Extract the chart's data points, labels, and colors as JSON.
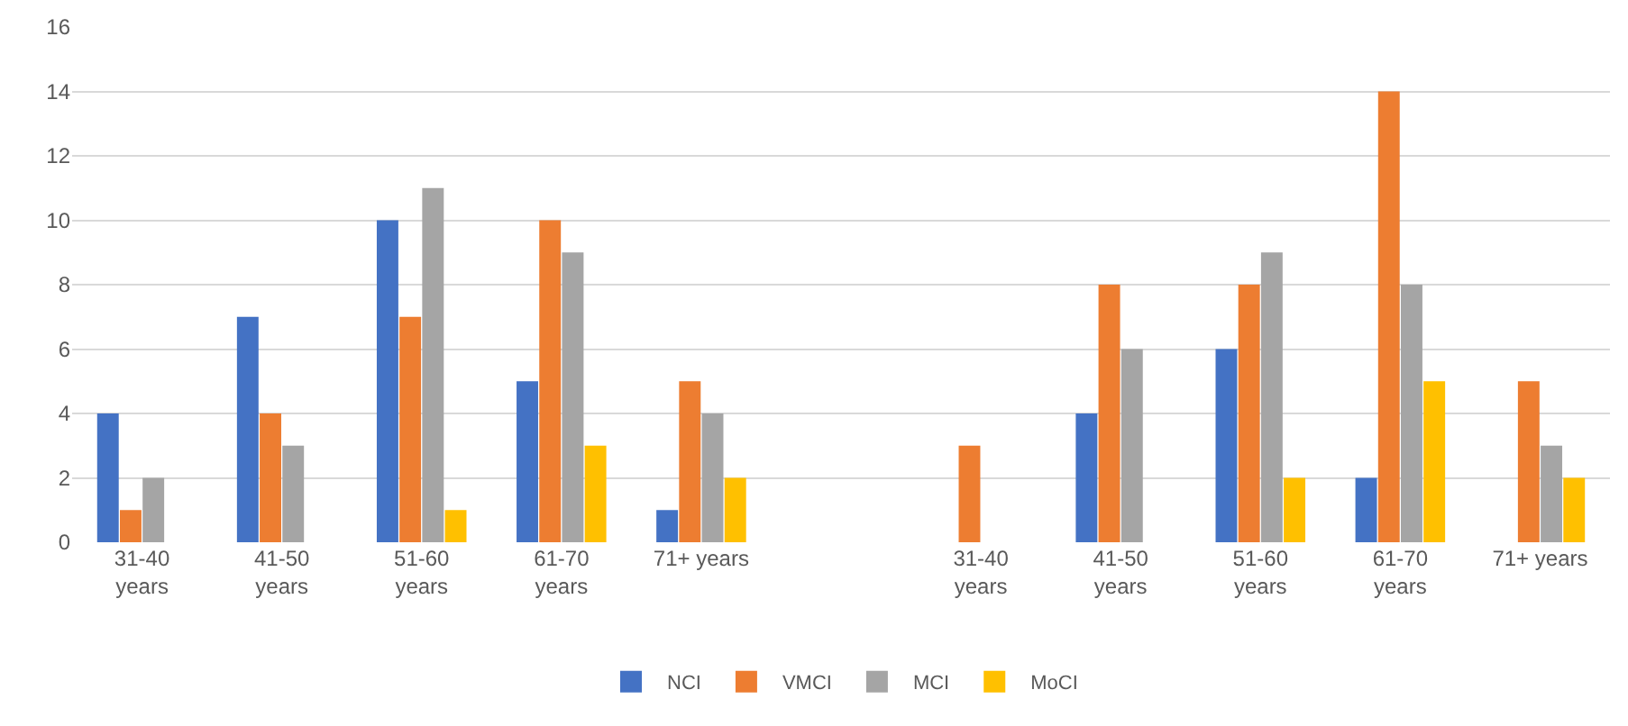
{
  "chart_data": {
    "type": "bar",
    "categories": [
      "31-40 years",
      "41-50 years",
      "51-60 years",
      "61-70 years",
      "71+ years",
      null,
      "31-40 years",
      "41-50 years",
      "51-60 years",
      "61-70 years",
      "71+ years"
    ],
    "series": [
      {
        "name": "NCI",
        "color": "#4472c4",
        "values": [
          4,
          7,
          10,
          5,
          1,
          null,
          0,
          4,
          6,
          2,
          0
        ]
      },
      {
        "name": "VMCI",
        "color": "#ed7d31",
        "values": [
          1,
          4,
          7,
          10,
          5,
          null,
          3,
          8,
          8,
          14,
          5
        ]
      },
      {
        "name": "MCI",
        "color": "#a5a5a5",
        "values": [
          2,
          3,
          11,
          9,
          4,
          null,
          0,
          6,
          9,
          8,
          3
        ]
      },
      {
        "name": "MoCI",
        "color": "#ffc000",
        "values": [
          0,
          0,
          1,
          3,
          2,
          null,
          0,
          0,
          2,
          5,
          2
        ]
      }
    ],
    "ylim": [
      0,
      16
    ],
    "yticks": [
      0,
      2,
      4,
      6,
      8,
      10,
      12,
      14,
      16
    ],
    "grid": "y",
    "legend": "bottom"
  }
}
